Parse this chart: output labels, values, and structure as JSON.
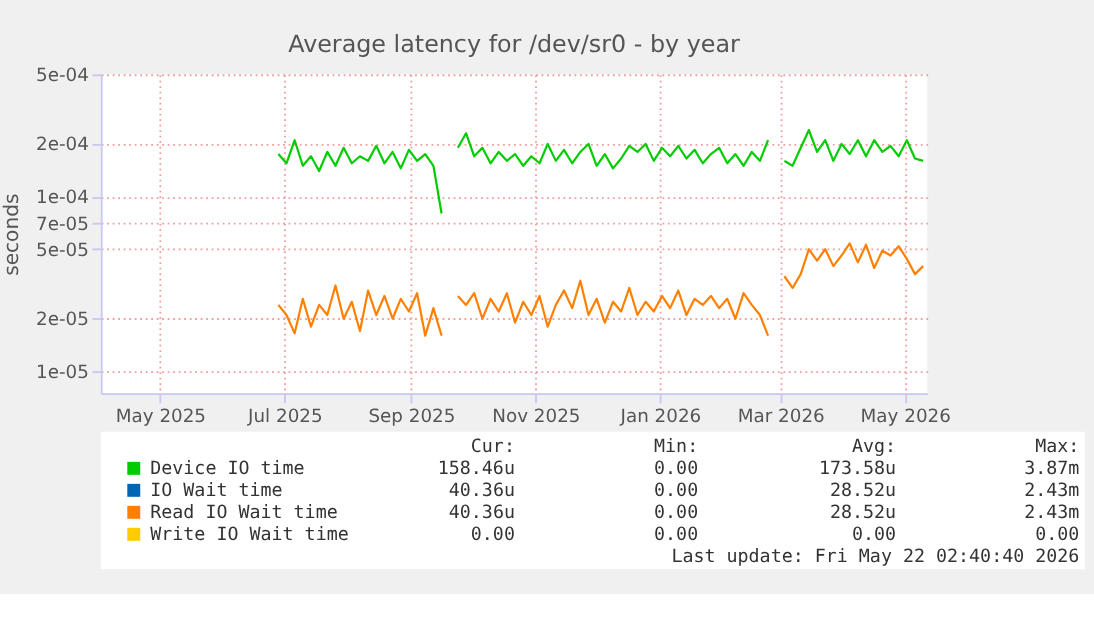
{
  "chart_data": {
    "type": "line",
    "title": "Average latency for /dev/sr0 - by year",
    "ylabel": "seconds",
    "x": [
      "2025-06-28",
      "2025-07-02",
      "2025-07-06",
      "2025-07-10",
      "2025-07-14",
      "2025-07-18",
      "2025-07-22",
      "2025-07-26",
      "2025-07-30",
      "2025-08-03",
      "2025-08-07",
      "2025-08-11",
      "2025-08-15",
      "2025-08-19",
      "2025-08-23",
      "2025-08-27",
      "2025-08-31",
      "2025-09-04",
      "2025-09-08",
      "2025-09-12",
      "2025-09-16",
      "2025-09-20",
      "2025-09-24",
      "2025-09-28",
      "2025-10-02",
      "2025-10-06",
      "2025-10-10",
      "2025-10-14",
      "2025-10-18",
      "2025-10-22",
      "2025-10-26",
      "2025-10-30",
      "2025-11-03",
      "2025-11-07",
      "2025-11-11",
      "2025-11-15",
      "2025-11-19",
      "2025-11-23",
      "2025-11-27",
      "2025-12-01",
      "2025-12-05",
      "2025-12-09",
      "2025-12-13",
      "2025-12-17",
      "2025-12-21",
      "2025-12-25",
      "2025-12-29",
      "2026-01-02",
      "2026-01-06",
      "2026-01-10",
      "2026-01-14",
      "2026-01-18",
      "2026-01-22",
      "2026-01-26",
      "2026-01-30",
      "2026-02-03",
      "2026-02-07",
      "2026-02-11",
      "2026-02-15",
      "2026-02-19",
      "2026-02-23",
      "2026-02-27",
      "2026-03-03",
      "2026-03-07",
      "2026-03-11",
      "2026-03-15",
      "2026-03-19",
      "2026-03-23",
      "2026-03-27",
      "2026-03-31",
      "2026-04-04",
      "2026-04-08",
      "2026-04-12",
      "2026-04-16",
      "2026-04-20",
      "2026-04-24",
      "2026-04-28",
      "2026-05-02",
      "2026-05-06",
      "2026-05-10"
    ],
    "series": [
      {
        "name": "Device IO time",
        "color": "#00cc00",
        "values": [
          0.000175,
          0.000155,
          0.00021,
          0.00015,
          0.00017,
          0.00014,
          0.00018,
          0.00015,
          0.00019,
          0.000155,
          0.00017,
          0.00016,
          0.000195,
          0.000155,
          0.00018,
          0.000145,
          0.000185,
          0.00016,
          0.000175,
          0.00015,
          8e-05,
          null,
          0.00019,
          0.00023,
          0.00017,
          0.00019,
          0.000155,
          0.00018,
          0.00016,
          0.000175,
          0.00015,
          0.00017,
          0.000155,
          0.0002,
          0.00016,
          0.000185,
          0.000155,
          0.00018,
          0.0002,
          0.00015,
          0.000175,
          0.000145,
          0.000165,
          0.000195,
          0.00018,
          0.0002,
          0.00016,
          0.00019,
          0.00017,
          0.000195,
          0.000165,
          0.000185,
          0.000155,
          0.000175,
          0.00019,
          0.000155,
          0.000175,
          0.00015,
          0.00018,
          0.00016,
          0.00021,
          null,
          0.00016,
          0.00015,
          0.00019,
          0.00024,
          0.00018,
          0.00021,
          0.00016,
          0.0002,
          0.000175,
          0.00021,
          0.00017,
          0.00021,
          0.00018,
          0.000195,
          0.00017,
          0.00021,
          0.000165,
          0.00016
        ]
      },
      {
        "name": "IO Wait time",
        "color": "#0066b3",
        "values": [
          null,
          null,
          null,
          null,
          null,
          null,
          null,
          null,
          null,
          null,
          null,
          null,
          null,
          null,
          null,
          null,
          null,
          null,
          null,
          null,
          null,
          null,
          null,
          null,
          null,
          null,
          null,
          null,
          null,
          null,
          null,
          null,
          null,
          null,
          null,
          null,
          null,
          null,
          null,
          null,
          null,
          null,
          null,
          null,
          null,
          null,
          null,
          null,
          null,
          null,
          null,
          null,
          null,
          null,
          null,
          null,
          null,
          null,
          null,
          null,
          null,
          null,
          null,
          null,
          null,
          null,
          null,
          null,
          null,
          null,
          null,
          null,
          null,
          null,
          null,
          null,
          null,
          null,
          null,
          null
        ]
      },
      {
        "name": "Read IO Wait time",
        "color": "#ff8000",
        "values": [
          2.4e-05,
          2.1e-05,
          1.65e-05,
          2.6e-05,
          1.8e-05,
          2.4e-05,
          2.1e-05,
          3.1e-05,
          2e-05,
          2.5e-05,
          1.7e-05,
          2.9e-05,
          2.1e-05,
          2.7e-05,
          2e-05,
          2.6e-05,
          2.2e-05,
          2.8e-05,
          1.6e-05,
          2.3e-05,
          1.6e-05,
          null,
          2.7e-05,
          2.4e-05,
          2.8e-05,
          2e-05,
          2.6e-05,
          2.2e-05,
          2.8e-05,
          1.9e-05,
          2.5e-05,
          2.1e-05,
          2.7e-05,
          1.8e-05,
          2.4e-05,
          2.9e-05,
          2.3e-05,
          3.3e-05,
          2.1e-05,
          2.6e-05,
          1.9e-05,
          2.5e-05,
          2.2e-05,
          3e-05,
          2.1e-05,
          2.5e-05,
          2.2e-05,
          2.7e-05,
          2.3e-05,
          2.9e-05,
          2.1e-05,
          2.6e-05,
          2.4e-05,
          2.7e-05,
          2.3e-05,
          2.6e-05,
          2e-05,
          2.8e-05,
          2.4e-05,
          2.1e-05,
          1.6e-05,
          null,
          3.5e-05,
          3e-05,
          3.6e-05,
          5e-05,
          4.3e-05,
          5e-05,
          4e-05,
          4.6e-05,
          5.4e-05,
          4.2e-05,
          5.3e-05,
          3.9e-05,
          4.9e-05,
          4.6e-05,
          5.2e-05,
          4.4e-05,
          3.6e-05,
          4e-05
        ]
      },
      {
        "name": "Write IO Wait time",
        "color": "#ffcc00",
        "values": [
          null,
          null,
          null,
          null,
          null,
          null,
          null,
          null,
          null,
          null,
          null,
          null,
          null,
          null,
          null,
          null,
          null,
          null,
          null,
          null,
          null,
          null,
          null,
          null,
          null,
          null,
          null,
          null,
          null,
          null,
          null,
          null,
          null,
          null,
          null,
          null,
          null,
          null,
          null,
          null,
          null,
          null,
          null,
          null,
          null,
          null,
          null,
          null,
          null,
          null,
          null,
          null,
          null,
          null,
          null,
          null,
          null,
          null,
          null,
          null,
          null,
          null,
          null,
          null,
          null,
          null,
          null,
          null,
          null,
          null,
          null,
          null,
          null,
          null,
          null,
          null,
          null,
          null,
          null,
          null
        ]
      }
    ],
    "log": "y",
    "ylim": [
      7.5e-06,
      0.0005
    ],
    "yticks": [
      {
        "value": 1e-05,
        "label": "1e-05"
      },
      {
        "value": 2e-05,
        "label": "2e-05"
      },
      {
        "value": 5e-05,
        "label": "5e-05"
      },
      {
        "value": 7e-05,
        "label": "7e-05"
      },
      {
        "value": 0.0001,
        "label": "1e-04"
      },
      {
        "value": 0.0002,
        "label": "2e-04"
      },
      {
        "value": 0.0005,
        "label": "5e-04"
      }
    ],
    "xlim": [
      "2025-04-02",
      "2026-05-12"
    ],
    "xticks": [
      {
        "value": "2025-05-01",
        "label": "May 2025"
      },
      {
        "value": "2025-07-01",
        "label": "Jul 2025"
      },
      {
        "value": "2025-09-01",
        "label": "Sep 2025"
      },
      {
        "value": "2025-11-01",
        "label": "Nov 2025"
      },
      {
        "value": "2026-01-01",
        "label": "Jan 2026"
      },
      {
        "value": "2026-03-01",
        "label": "Mar 2026"
      },
      {
        "value": "2026-05-01",
        "label": "May 2026"
      }
    ],
    "grid": true,
    "legend": "bottom",
    "line_style": "solid",
    "marker": "none",
    "annotations": [
      "Cur:",
      "Min:",
      "Avg:",
      "Max:",
      "158.46u",
      "0.00",
      "173.58u",
      "3.87m",
      "40.36u",
      "0.00",
      "28.52u",
      "2.43m",
      "40.36u",
      "0.00",
      "28.52u",
      "2.43m",
      "0.00",
      "0.00",
      "0.00",
      "0.00",
      "Last update: Fri May 22 02:40:40 2026"
    ]
  }
}
